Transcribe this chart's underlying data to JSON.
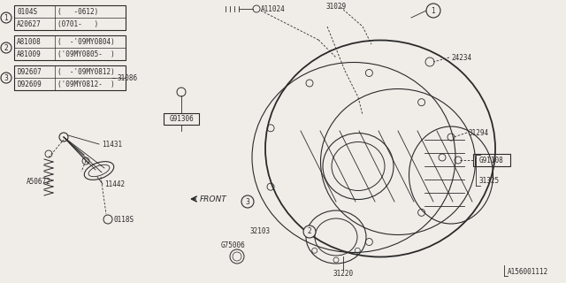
{
  "bg_color": "#f0ede8",
  "line_color": "#2a2a2a",
  "part_number": "A156001112",
  "table1": {
    "circle": "1",
    "rows": [
      [
        "0104S",
        "(   -0612)"
      ],
      [
        "A20627",
        "(0701-   )"
      ]
    ]
  },
  "table2": {
    "circle": "2",
    "rows": [
      [
        "A81008",
        "(  -'09MY0804)"
      ],
      [
        "A81009",
        "('09MY0805-  )"
      ]
    ]
  },
  "table3": {
    "circle": "3",
    "rows": [
      [
        "D92607",
        "(  -'09MY0812)"
      ],
      [
        "D92609",
        "('09MY0812-  )"
      ]
    ]
  },
  "label_31086": "31086",
  "label_G91306": "G91306",
  "label_A11024": "A11024",
  "label_31029": "31029",
  "label_24234": "24234",
  "label_31294": "31294",
  "label_G91108": "G91108",
  "label_31325": "31325",
  "label_31220": "31220",
  "label_32103": "32103",
  "label_G75006": "G75006",
  "label_FRONT": "FRONT",
  "label_11431": "11431",
  "label_A50672": "A50672",
  "label_11442": "11442",
  "label_0118S": "0118S"
}
